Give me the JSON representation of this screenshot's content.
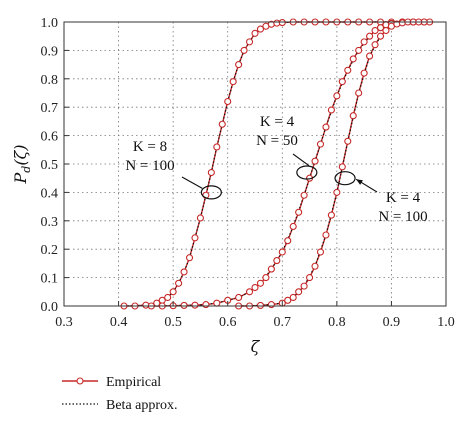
{
  "chart_data": {
    "type": "line",
    "title": "",
    "xlabel": "ζ",
    "ylabel": "P_d(ζ)",
    "ylabel_main": "P",
    "ylabel_sub": "d",
    "ylabel_arg": "(ζ)",
    "xlim": [
      0.3,
      1.0
    ],
    "ylim": [
      0.0,
      1.0
    ],
    "xticks": [
      "0.3",
      "0.4",
      "0.5",
      "0.6",
      "0.7",
      "0.8",
      "0.9",
      "1.0"
    ],
    "yticks": [
      "0.0",
      "0.1",
      "0.2",
      "0.3",
      "0.4",
      "0.5",
      "0.6",
      "0.7",
      "0.8",
      "0.9",
      "1.0"
    ],
    "grid": true,
    "legend": {
      "placement": "below",
      "entries": [
        "Empirical",
        "Beta approx."
      ]
    },
    "colors": {
      "empirical": "#c62828",
      "beta": "#111111"
    },
    "series": [
      {
        "name": "Empirical",
        "curves": [
          {
            "x": [
              0.41,
              0.43,
              0.45,
              0.47,
              0.48,
              0.49,
              0.5,
              0.51,
              0.52,
              0.53,
              0.54,
              0.55,
              0.56,
              0.57,
              0.58,
              0.59,
              0.6,
              0.61,
              0.62,
              0.63,
              0.64,
              0.65,
              0.66,
              0.67,
              0.68,
              0.69,
              0.7,
              0.72,
              0.74,
              0.76,
              0.78,
              0.8,
              0.82,
              0.84,
              0.86,
              0.88,
              0.9,
              0.92,
              0.94,
              0.96,
              0.97
            ],
            "y": [
              0.0,
              0.0,
              0.003,
              0.01,
              0.02,
              0.03,
              0.05,
              0.08,
              0.12,
              0.17,
              0.24,
              0.31,
              0.39,
              0.47,
              0.56,
              0.64,
              0.72,
              0.79,
              0.85,
              0.9,
              0.93,
              0.96,
              0.975,
              0.985,
              0.992,
              0.996,
              0.998,
              1.0,
              1.0,
              1.0,
              1.0,
              1.0,
              1.0,
              1.0,
              1.0,
              1.0,
              1.0,
              1.0,
              1.0,
              1.0,
              1.0
            ]
          },
          {
            "x": [
              0.46,
              0.48,
              0.5,
              0.52,
              0.54,
              0.56,
              0.58,
              0.6,
              0.62,
              0.64,
              0.65,
              0.66,
              0.67,
              0.68,
              0.69,
              0.7,
              0.71,
              0.72,
              0.73,
              0.74,
              0.75,
              0.76,
              0.77,
              0.78,
              0.79,
              0.8,
              0.81,
              0.82,
              0.83,
              0.84,
              0.85,
              0.86,
              0.87,
              0.88,
              0.89,
              0.9,
              0.92,
              0.94,
              0.96
            ],
            "y": [
              0.0,
              0.0,
              0.001,
              0.002,
              0.003,
              0.005,
              0.01,
              0.02,
              0.03,
              0.05,
              0.065,
              0.08,
              0.1,
              0.13,
              0.16,
              0.19,
              0.23,
              0.28,
              0.33,
              0.39,
              0.45,
              0.51,
              0.57,
              0.63,
              0.69,
              0.74,
              0.79,
              0.83,
              0.87,
              0.9,
              0.93,
              0.95,
              0.97,
              0.98,
              0.99,
              0.995,
              1.0,
              1.0,
              1.0
            ]
          },
          {
            "x": [
              0.62,
              0.64,
              0.66,
              0.68,
              0.7,
              0.71,
              0.72,
              0.73,
              0.74,
              0.75,
              0.76,
              0.77,
              0.78,
              0.79,
              0.8,
              0.81,
              0.82,
              0.83,
              0.84,
              0.85,
              0.86,
              0.87,
              0.88,
              0.89,
              0.9,
              0.91,
              0.92,
              0.93,
              0.94,
              0.95
            ],
            "y": [
              0.0,
              0.0,
              0.002,
              0.005,
              0.01,
              0.02,
              0.03,
              0.05,
              0.07,
              0.1,
              0.14,
              0.19,
              0.25,
              0.32,
              0.4,
              0.49,
              0.58,
              0.67,
              0.75,
              0.82,
              0.88,
              0.92,
              0.95,
              0.97,
              0.985,
              0.993,
              0.997,
              1.0,
              1.0,
              1.0
            ]
          }
        ]
      },
      {
        "name": "Beta approx.",
        "curves": [
          {
            "x": [
              0.41,
              0.45,
              0.47,
              0.49,
              0.5,
              0.51,
              0.52,
              0.53,
              0.54,
              0.55,
              0.56,
              0.57,
              0.58,
              0.59,
              0.6,
              0.61,
              0.62,
              0.63,
              0.64,
              0.65,
              0.66,
              0.68,
              0.7,
              0.72,
              0.75,
              0.8,
              0.85,
              0.9,
              0.95,
              0.97
            ],
            "y": [
              0.0,
              0.003,
              0.01,
              0.03,
              0.05,
              0.08,
              0.12,
              0.17,
              0.24,
              0.31,
              0.39,
              0.47,
              0.56,
              0.64,
              0.72,
              0.79,
              0.85,
              0.9,
              0.93,
              0.96,
              0.975,
              0.992,
              0.998,
              1.0,
              1.0,
              1.0,
              1.0,
              1.0,
              1.0,
              1.0
            ]
          },
          {
            "x": [
              0.46,
              0.5,
              0.55,
              0.58,
              0.6,
              0.62,
              0.64,
              0.66,
              0.68,
              0.7,
              0.72,
              0.74,
              0.76,
              0.78,
              0.8,
              0.82,
              0.84,
              0.86,
              0.88,
              0.9,
              0.92,
              0.96
            ],
            "y": [
              0.0,
              0.001,
              0.004,
              0.01,
              0.02,
              0.03,
              0.05,
              0.08,
              0.13,
              0.19,
              0.28,
              0.39,
              0.51,
              0.63,
              0.74,
              0.83,
              0.9,
              0.95,
              0.98,
              0.995,
              1.0,
              1.0
            ]
          },
          {
            "x": [
              0.62,
              0.66,
              0.7,
              0.72,
              0.74,
              0.76,
              0.78,
              0.8,
              0.82,
              0.84,
              0.86,
              0.88,
              0.9,
              0.92,
              0.95
            ],
            "y": [
              0.0,
              0.002,
              0.01,
              0.03,
              0.07,
              0.14,
              0.25,
              0.4,
              0.58,
              0.75,
              0.88,
              0.95,
              0.985,
              0.997,
              1.0
            ]
          }
        ]
      }
    ],
    "annotations": [
      {
        "lines": [
          "K = 8",
          "N = 100"
        ],
        "target": [
          0.57,
          0.4
        ]
      },
      {
        "lines": [
          "K = 4",
          "N = 50"
        ],
        "target": [
          0.745,
          0.47
        ]
      },
      {
        "lines": [
          "K = 4",
          "N = 100"
        ],
        "target": [
          0.815,
          0.45
        ]
      }
    ]
  }
}
